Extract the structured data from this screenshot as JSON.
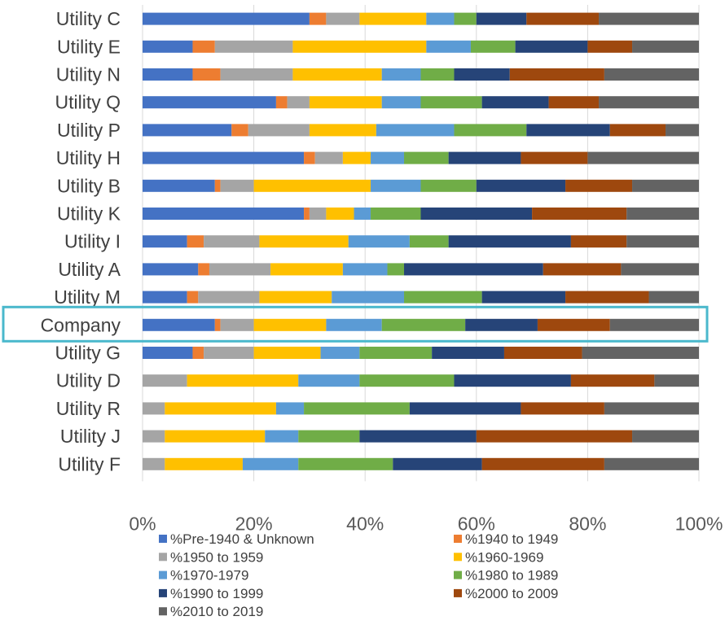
{
  "chart_data": {
    "type": "bar",
    "orientation": "horizontal",
    "stacked": true,
    "percent": true,
    "title": "",
    "xlabel": "",
    "ylabel": "",
    "xlim": [
      0,
      100
    ],
    "x_ticks": [
      "0%",
      "20%",
      "40%",
      "60%",
      "80%",
      "100%"
    ],
    "grid": true,
    "legend_position": "bottom",
    "highlight_category": "Company",
    "highlight_color": "#4ab8cc",
    "categories": [
      "Utility C",
      "Utility E",
      "Utility N",
      "Utility Q",
      "Utility P",
      "Utility H",
      "Utility B",
      "Utility K",
      "Utility I",
      "Utility A",
      "Utility M",
      "Company",
      "Utility G",
      "Utility D",
      "Utility R",
      "Utility J",
      "Utility F"
    ],
    "series": [
      {
        "name": "%Pre-1940 & Unknown",
        "color": "#4472c4",
        "values": [
          30,
          9,
          9,
          24,
          16,
          29,
          13,
          29,
          8,
          10,
          8,
          13,
          9,
          0,
          0,
          0,
          0
        ]
      },
      {
        "name": "%1940 to 1949",
        "color": "#ed7d31",
        "values": [
          3,
          4,
          5,
          2,
          3,
          2,
          1,
          1,
          3,
          2,
          2,
          1,
          2,
          0,
          0,
          0,
          0
        ]
      },
      {
        "name": "%1950 to 1959",
        "color": "#a5a5a5",
        "values": [
          6,
          14,
          13,
          4,
          11,
          5,
          6,
          3,
          10,
          11,
          11,
          6,
          9,
          8,
          4,
          4,
          4
        ]
      },
      {
        "name": "%1960-1969",
        "color": "#ffc000",
        "values": [
          12,
          24,
          16,
          13,
          12,
          5,
          21,
          5,
          16,
          13,
          13,
          13,
          12,
          20,
          20,
          18,
          14
        ]
      },
      {
        "name": "%1970-1979",
        "color": "#5b9bd5",
        "values": [
          5,
          8,
          7,
          7,
          14,
          6,
          9,
          3,
          11,
          8,
          13,
          10,
          7,
          11,
          5,
          6,
          10
        ]
      },
      {
        "name": "%1980 to 1989",
        "color": "#70ad47",
        "values": [
          4,
          8,
          6,
          11,
          13,
          8,
          10,
          9,
          7,
          3,
          14,
          15,
          13,
          17,
          19,
          11,
          17
        ]
      },
      {
        "name": "%1990 to 1999",
        "color": "#264478",
        "values": [
          9,
          13,
          10,
          12,
          15,
          13,
          16,
          20,
          22,
          25,
          15,
          13,
          13,
          21,
          20,
          21,
          16
        ]
      },
      {
        "name": "%2000 to 2009",
        "color": "#9e480e",
        "values": [
          13,
          8,
          17,
          9,
          10,
          12,
          12,
          17,
          10,
          14,
          15,
          13,
          14,
          15,
          15,
          28,
          22
        ]
      },
      {
        "name": "%2010 to 2019",
        "color": "#636363",
        "values": [
          18,
          12,
          17,
          18,
          6,
          20,
          12,
          13,
          13,
          14,
          9,
          16,
          21,
          8,
          17,
          12,
          17
        ]
      }
    ]
  }
}
